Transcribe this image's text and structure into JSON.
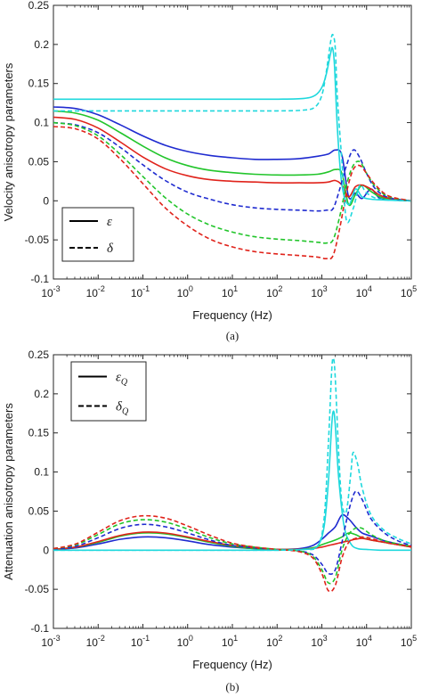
{
  "chart_data": [
    {
      "type": "line",
      "panel": "(a)",
      "xlabel": "Frequency (Hz)",
      "ylabel": "Velocity anisotropy parameters",
      "xscale": "log",
      "xlim": [
        0.001,
        100000
      ],
      "ylim": [
        -0.1,
        0.25
      ],
      "xticks": [
        "10",
        "10",
        "10",
        "10",
        "10",
        "10",
        "10",
        "10",
        "10"
      ],
      "xtick_exponents": [
        "-3",
        "-2",
        "-1",
        "0",
        "1",
        "2",
        "3",
        "4",
        "5"
      ],
      "yticks": [
        "-0.1",
        "-0.05",
        "0",
        "0.05",
        "0.1",
        "0.15",
        "0.2",
        "0.25"
      ],
      "legend": {
        "position": "bottom-left",
        "entries": [
          {
            "label": "ε",
            "style": "solid"
          },
          {
            "label": "δ",
            "style": "dashed"
          }
        ]
      },
      "series": [
        {
          "color": "#1f2bd0",
          "style": "solid",
          "x": [
            -3,
            -2.5,
            -2,
            -1.5,
            -1,
            -0.5,
            0,
            0.5,
            1,
            1.5,
            2,
            2.5,
            2.9,
            3.15,
            3.3,
            3.45,
            3.6,
            3.75,
            3.9,
            4.1,
            4.3,
            4.6,
            5
          ],
          "y": [
            0.12,
            0.118,
            0.11,
            0.097,
            0.083,
            0.071,
            0.063,
            0.058,
            0.055,
            0.053,
            0.053,
            0.054,
            0.057,
            0.06,
            0.065,
            0.058,
            0.005,
            0.01,
            0.003,
            0.015,
            0.003,
            0.001,
            0.0
          ]
        },
        {
          "color": "#22c52b",
          "style": "solid",
          "x": [
            -3,
            -2.5,
            -2,
            -1.5,
            -1,
            -0.5,
            0,
            0.5,
            1,
            1.5,
            2,
            2.5,
            2.9,
            3.15,
            3.3,
            3.45,
            3.6,
            3.75,
            3.9,
            4.1,
            4.3,
            4.6,
            5
          ],
          "y": [
            0.115,
            0.112,
            0.103,
            0.087,
            0.07,
            0.055,
            0.045,
            0.039,
            0.036,
            0.034,
            0.033,
            0.033,
            0.034,
            0.037,
            0.04,
            0.035,
            -0.005,
            0.008,
            0.02,
            0.012,
            0.005,
            0.001,
            0.0
          ]
        },
        {
          "color": "#e0231b",
          "style": "solid",
          "x": [
            -3,
            -2.5,
            -2,
            -1.5,
            -1,
            -0.5,
            0,
            0.5,
            1,
            1.5,
            2,
            2.5,
            2.9,
            3.15,
            3.3,
            3.45,
            3.6,
            3.75,
            3.9,
            4.1,
            4.3,
            4.6,
            5
          ],
          "y": [
            0.107,
            0.104,
            0.093,
            0.075,
            0.056,
            0.041,
            0.032,
            0.027,
            0.025,
            0.024,
            0.023,
            0.023,
            0.023,
            0.024,
            0.026,
            0.02,
            0.005,
            0.018,
            0.02,
            0.015,
            0.007,
            0.002,
            0.0
          ]
        },
        {
          "color": "#1fd8dd",
          "style": "solid",
          "x": [
            -3,
            -2,
            -1,
            0,
            1,
            2,
            2.6,
            2.85,
            3.0,
            3.1,
            3.2,
            3.24,
            3.28,
            3.35,
            3.45,
            3.6,
            3.75,
            3.9,
            4.1,
            4.4,
            5
          ],
          "y": [
            0.13,
            0.13,
            0.13,
            0.13,
            0.13,
            0.13,
            0.131,
            0.135,
            0.145,
            0.162,
            0.19,
            0.195,
            0.175,
            0.09,
            0.02,
            -0.005,
            0.015,
            0.005,
            0.002,
            0.001,
            0.0
          ]
        },
        {
          "color": "#1f2bd0",
          "style": "dashed",
          "x": [
            -3,
            -2.5,
            -2,
            -1.5,
            -1,
            -0.5,
            0,
            0.5,
            1,
            1.5,
            2,
            2.5,
            2.9,
            3.1,
            3.25,
            3.4,
            3.55,
            3.7,
            3.85,
            4.0,
            4.2,
            4.5,
            5
          ],
          "y": [
            0.1,
            0.097,
            0.087,
            0.068,
            0.046,
            0.026,
            0.011,
            0.002,
            -0.005,
            -0.009,
            -0.011,
            -0.012,
            -0.013,
            -0.012,
            -0.01,
            0.015,
            0.045,
            0.065,
            0.055,
            0.035,
            0.015,
            0.004,
            0.0
          ]
        },
        {
          "color": "#22c52b",
          "style": "dashed",
          "x": [
            -3,
            -2.5,
            -2,
            -1.5,
            -1,
            -0.5,
            0,
            0.5,
            1,
            1.5,
            2,
            2.5,
            2.9,
            3.1,
            3.25,
            3.4,
            3.55,
            3.7,
            3.85,
            4.0,
            4.2,
            4.5,
            5
          ],
          "y": [
            0.1,
            0.096,
            0.083,
            0.059,
            0.031,
            0.004,
            -0.017,
            -0.031,
            -0.04,
            -0.046,
            -0.049,
            -0.051,
            -0.053,
            -0.054,
            -0.05,
            -0.02,
            0.02,
            0.045,
            0.05,
            0.035,
            0.018,
            0.005,
            0.0
          ]
        },
        {
          "color": "#e0231b",
          "style": "dashed",
          "x": [
            -3,
            -2.5,
            -2,
            -1.5,
            -1,
            -0.5,
            0,
            0.5,
            1,
            1.5,
            2,
            2.5,
            2.9,
            3.1,
            3.25,
            3.4,
            3.55,
            3.7,
            3.85,
            4.0,
            4.2,
            4.5,
            5
          ],
          "y": [
            0.095,
            0.092,
            0.079,
            0.053,
            0.022,
            -0.009,
            -0.032,
            -0.049,
            -0.059,
            -0.065,
            -0.068,
            -0.07,
            -0.072,
            -0.074,
            -0.07,
            -0.035,
            0.01,
            0.04,
            0.045,
            0.035,
            0.02,
            0.006,
            0.0
          ]
        },
        {
          "color": "#1fd8dd",
          "style": "dashed",
          "x": [
            -3,
            -2,
            -1,
            0,
            1,
            2,
            2.6,
            2.85,
            3.0,
            3.1,
            3.2,
            3.25,
            3.3,
            3.35,
            3.45,
            3.55,
            3.7,
            3.85,
            4.0,
            4.3,
            5
          ],
          "y": [
            0.115,
            0.115,
            0.115,
            0.115,
            0.115,
            0.115,
            0.116,
            0.12,
            0.135,
            0.165,
            0.205,
            0.212,
            0.195,
            0.13,
            0.05,
            -0.025,
            -0.01,
            0.02,
            0.01,
            0.002,
            0.0
          ]
        }
      ]
    },
    {
      "type": "line",
      "panel": "(b)",
      "xlabel": "Frequency (Hz)",
      "ylabel": "Attenuation anisotropy parameters",
      "xscale": "log",
      "xlim": [
        0.001,
        100000
      ],
      "ylim": [
        -0.1,
        0.25
      ],
      "xticks": [
        "10",
        "10",
        "10",
        "10",
        "10",
        "10",
        "10",
        "10",
        "10"
      ],
      "xtick_exponents": [
        "-3",
        "-2",
        "-1",
        "0",
        "1",
        "2",
        "3",
        "4",
        "5"
      ],
      "yticks": [
        "-0.1",
        "-0.05",
        "0",
        "0.05",
        "0.1",
        "0.15",
        "0.2",
        "0.25"
      ],
      "legend": {
        "position": "top-left",
        "entries": [
          {
            "label": "ε",
            "subscript": "Q",
            "style": "solid"
          },
          {
            "label": "δ",
            "subscript": "Q",
            "style": "dashed"
          }
        ]
      },
      "series": [
        {
          "color": "#1f2bd0",
          "style": "solid",
          "x": [
            -3,
            -2.5,
            -2,
            -1.5,
            -1,
            -0.5,
            0,
            0.5,
            1,
            1.5,
            2,
            2.5,
            2.8,
            3.0,
            3.15,
            3.3,
            3.45,
            3.6,
            3.75,
            3.9,
            4.1,
            4.4,
            4.7,
            5
          ],
          "y": [
            0.001,
            0.003,
            0.008,
            0.014,
            0.017,
            0.016,
            0.012,
            0.007,
            0.004,
            0.002,
            0.001,
            0.002,
            0.006,
            0.014,
            0.022,
            0.03,
            0.045,
            0.04,
            0.03,
            0.022,
            0.018,
            0.012,
            0.008,
            0.005
          ]
        },
        {
          "color": "#22c52b",
          "style": "solid",
          "x": [
            -3,
            -2.5,
            -2,
            -1.5,
            -1,
            -0.5,
            0,
            0.5,
            1,
            1.5,
            2,
            2.5,
            2.8,
            3.0,
            3.15,
            3.3,
            3.45,
            3.6,
            3.75,
            3.9,
            4.1,
            4.4,
            4.7,
            5
          ],
          "y": [
            0.001,
            0.004,
            0.01,
            0.018,
            0.022,
            0.021,
            0.016,
            0.01,
            0.005,
            0.002,
            0.001,
            0.001,
            0.003,
            0.007,
            0.01,
            0.013,
            0.017,
            0.022,
            0.02,
            0.016,
            0.013,
            0.01,
            0.007,
            0.004
          ]
        },
        {
          "color": "#e0231b",
          "style": "solid",
          "x": [
            -3,
            -2.5,
            -2,
            -1.5,
            -1,
            -0.5,
            0,
            0.5,
            1,
            1.5,
            2,
            2.5,
            2.8,
            3.0,
            3.15,
            3.3,
            3.45,
            3.6,
            3.75,
            3.9,
            4.1,
            4.4,
            4.7,
            5
          ],
          "y": [
            0.001,
            0.004,
            0.011,
            0.019,
            0.023,
            0.022,
            0.017,
            0.011,
            0.006,
            0.003,
            0.001,
            0.001,
            0.002,
            0.004,
            0.006,
            0.008,
            0.01,
            0.012,
            0.014,
            0.015,
            0.013,
            0.01,
            0.007,
            0.004
          ]
        },
        {
          "color": "#1fd8dd",
          "style": "solid",
          "x": [
            -3,
            -2,
            -1,
            0,
            1,
            2,
            2.6,
            2.9,
            3.05,
            3.15,
            3.22,
            3.26,
            3.3,
            3.38,
            3.5,
            3.65,
            3.8,
            4.0,
            4.3,
            5
          ],
          "y": [
            0.0,
            0.0,
            0.0,
            0.0,
            0.0,
            0.0,
            0.001,
            0.005,
            0.03,
            0.09,
            0.16,
            0.178,
            0.16,
            0.09,
            0.03,
            0.008,
            0.002,
            0.001,
            0.0,
            0.0
          ]
        },
        {
          "color": "#1f2bd0",
          "style": "dashed",
          "x": [
            -3,
            -2.5,
            -2,
            -1.5,
            -1,
            -0.5,
            0,
            0.5,
            1,
            1.5,
            2,
            2.5,
            2.8,
            3.0,
            3.15,
            3.3,
            3.45,
            3.6,
            3.75,
            3.9,
            4.1,
            4.4,
            4.7,
            5
          ],
          "y": [
            0.001,
            0.005,
            0.016,
            0.028,
            0.033,
            0.03,
            0.022,
            0.013,
            0.006,
            0.003,
            0.001,
            -0.001,
            -0.006,
            -0.018,
            -0.03,
            -0.025,
            0.01,
            0.05,
            0.075,
            0.065,
            0.04,
            0.022,
            0.012,
            0.006
          ]
        },
        {
          "color": "#22c52b",
          "style": "dashed",
          "x": [
            -3,
            -2.5,
            -2,
            -1.5,
            -1,
            -0.5,
            0,
            0.5,
            1,
            1.5,
            2,
            2.5,
            2.8,
            3.0,
            3.15,
            3.3,
            3.45,
            3.6,
            3.75,
            3.9,
            4.1,
            4.4,
            4.7,
            5
          ],
          "y": [
            0.002,
            0.007,
            0.02,
            0.034,
            0.039,
            0.036,
            0.027,
            0.016,
            0.008,
            0.004,
            0.001,
            -0.001,
            -0.008,
            -0.025,
            -0.042,
            -0.035,
            0.0,
            0.02,
            0.028,
            0.028,
            0.02,
            0.012,
            0.008,
            0.005
          ]
        },
        {
          "color": "#e0231b",
          "style": "dashed",
          "x": [
            -3,
            -2.5,
            -2,
            -1.5,
            -1,
            -0.5,
            0,
            0.5,
            1,
            1.5,
            2,
            2.5,
            2.8,
            3.0,
            3.15,
            3.3,
            3.45,
            3.6,
            3.75,
            3.9,
            4.1,
            4.4,
            4.7,
            5
          ],
          "y": [
            0.002,
            0.008,
            0.023,
            0.038,
            0.044,
            0.041,
            0.031,
            0.019,
            0.009,
            0.004,
            0.001,
            -0.002,
            -0.01,
            -0.03,
            -0.052,
            -0.045,
            -0.01,
            0.01,
            0.015,
            0.017,
            0.015,
            0.01,
            0.007,
            0.005
          ]
        },
        {
          "color": "#1fd8dd",
          "style": "dashed",
          "x": [
            -3,
            -2,
            -1,
            0,
            1,
            2,
            2.6,
            2.9,
            3.05,
            3.15,
            3.22,
            3.26,
            3.3,
            3.38,
            3.45,
            3.55,
            3.65,
            3.7,
            3.8,
            3.9,
            4.1,
            4.4,
            4.7,
            5
          ],
          "y": [
            0.0,
            0.0,
            0.0,
            0.0,
            0.0,
            0.0,
            0.001,
            0.005,
            0.04,
            0.14,
            0.23,
            0.245,
            0.22,
            0.12,
            0.06,
            0.05,
            0.1,
            0.125,
            0.11,
            0.08,
            0.045,
            0.025,
            0.015,
            0.008
          ]
        }
      ]
    }
  ]
}
